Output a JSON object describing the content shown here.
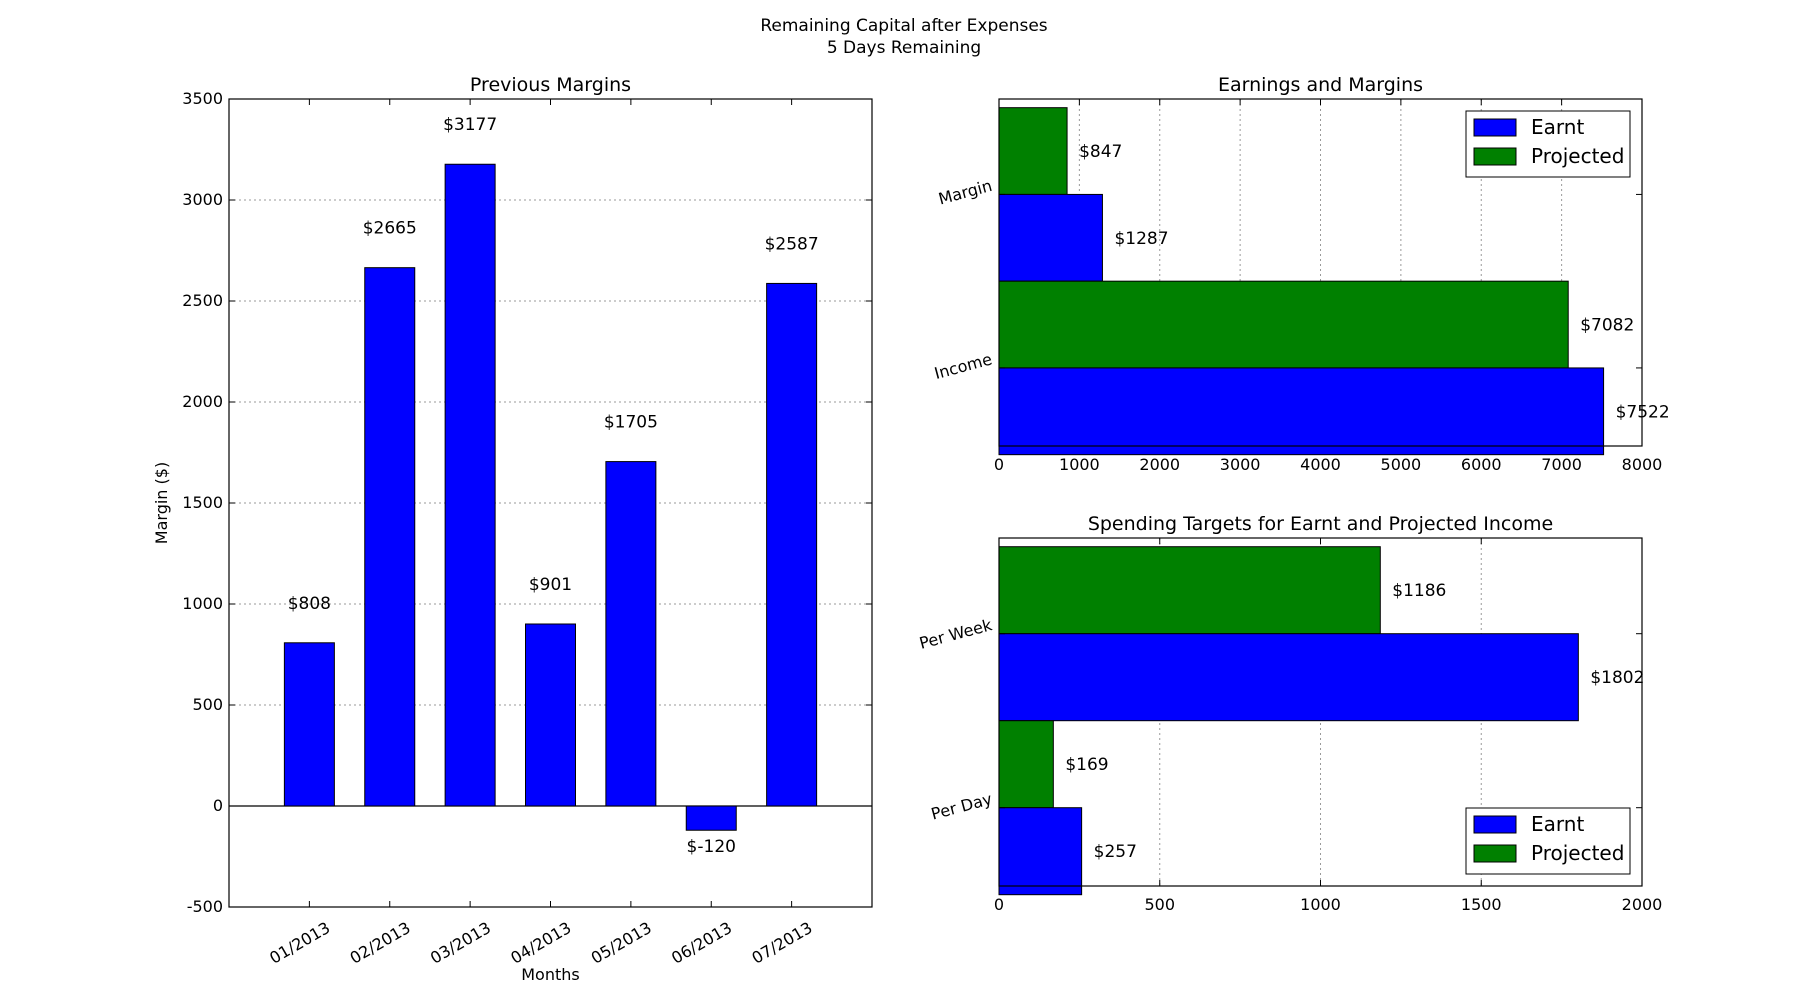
{
  "figure": {
    "title_line1": "Remaining Capital after Expenses",
    "title_line2": "5 Days Remaining"
  },
  "chart_data": [
    {
      "type": "bar",
      "title": "Previous Margins",
      "xlabel": "Months",
      "ylabel": "Margin ($)",
      "categories": [
        "01/2013",
        "02/2013",
        "03/2013",
        "04/2013",
        "05/2013",
        "06/2013",
        "07/2013"
      ],
      "values": [
        808,
        2665,
        3177,
        901,
        1705,
        -120,
        2587
      ],
      "data_labels": [
        "$808",
        "$2665",
        "$3177",
        "$901",
        "$1705",
        "$-120",
        "$2587"
      ],
      "ylim": [
        -500,
        3500
      ],
      "yticks": [
        -500,
        0,
        500,
        1000,
        1500,
        2000,
        2500,
        3000,
        3500
      ],
      "color": "#0000ff",
      "grid": true
    },
    {
      "type": "bar",
      "orientation": "horizontal",
      "title": "Earnings and Margins",
      "categories": [
        "Margin",
        "Income"
      ],
      "series": [
        {
          "name": "Earnt",
          "color": "#0000ff",
          "values": [
            1287,
            7522
          ],
          "data_labels": [
            "$1287",
            "$7522"
          ]
        },
        {
          "name": "Projected",
          "color": "#008000",
          "values": [
            847,
            7082
          ],
          "data_labels": [
            "$847",
            "$7082"
          ]
        }
      ],
      "xlim": [
        0,
        8000
      ],
      "xticks": [
        0,
        1000,
        2000,
        3000,
        4000,
        5000,
        6000,
        7000,
        8000
      ],
      "legend": "top-right",
      "grid": true
    },
    {
      "type": "bar",
      "orientation": "horizontal",
      "title": "Spending Targets for Earnt and Projected Income",
      "categories": [
        "Per Week",
        "Per Day"
      ],
      "series": [
        {
          "name": "Earnt",
          "color": "#0000ff",
          "values": [
            1802,
            257
          ],
          "data_labels": [
            "$1802",
            "$257"
          ]
        },
        {
          "name": "Projected",
          "color": "#008000",
          "values": [
            1186,
            169
          ],
          "data_labels": [
            "$1186",
            "$169"
          ]
        }
      ],
      "xlim": [
        0,
        2000
      ],
      "xticks": [
        0,
        500,
        1000,
        1500,
        2000
      ],
      "legend": "bottom-right",
      "grid": true
    }
  ]
}
